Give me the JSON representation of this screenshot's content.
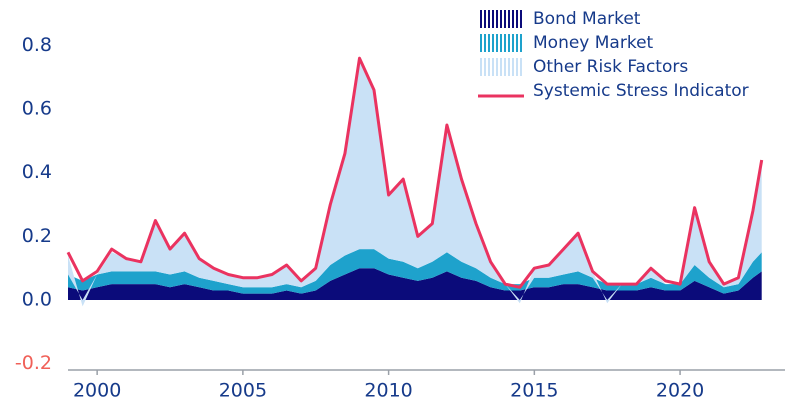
{
  "chart_data": {
    "type": "stacked_area_line",
    "x": [
      1999.0,
      1999.5,
      2000.0,
      2000.5,
      2001.0,
      2001.5,
      2002.0,
      2002.5,
      2003.0,
      2003.5,
      2004.0,
      2004.5,
      2005.0,
      2005.5,
      2006.0,
      2006.5,
      2007.0,
      2007.5,
      2008.0,
      2008.5,
      2009.0,
      2009.5,
      2010.0,
      2010.5,
      2011.0,
      2011.5,
      2012.0,
      2012.5,
      2013.0,
      2013.5,
      2014.0,
      2014.5,
      2015.0,
      2015.5,
      2016.0,
      2016.5,
      2017.0,
      2017.5,
      2018.0,
      2018.5,
      2019.0,
      2019.5,
      2020.0,
      2020.5,
      2021.0,
      2021.5,
      2022.0,
      2022.5,
      2022.8
    ],
    "series": [
      {
        "name": "Bond Market",
        "color": "#0b0b7a",
        "kind": "area",
        "values": [
          0.04,
          0.03,
          0.04,
          0.05,
          0.05,
          0.05,
          0.05,
          0.04,
          0.05,
          0.04,
          0.03,
          0.03,
          0.02,
          0.02,
          0.02,
          0.03,
          0.02,
          0.03,
          0.06,
          0.08,
          0.1,
          0.1,
          0.08,
          0.07,
          0.06,
          0.07,
          0.09,
          0.07,
          0.06,
          0.04,
          0.03,
          0.03,
          0.04,
          0.04,
          0.05,
          0.05,
          0.04,
          0.03,
          0.03,
          0.03,
          0.04,
          0.03,
          0.03,
          0.06,
          0.04,
          0.02,
          0.03,
          0.07,
          0.09
        ]
      },
      {
        "name": "Money Market",
        "color": "#1ea2cc",
        "kind": "area",
        "values": [
          0.04,
          0.03,
          0.04,
          0.04,
          0.04,
          0.04,
          0.04,
          0.04,
          0.04,
          0.03,
          0.03,
          0.02,
          0.02,
          0.02,
          0.02,
          0.02,
          0.02,
          0.03,
          0.05,
          0.06,
          0.06,
          0.06,
          0.05,
          0.05,
          0.04,
          0.05,
          0.06,
          0.05,
          0.04,
          0.03,
          0.02,
          0.02,
          0.03,
          0.03,
          0.03,
          0.04,
          0.03,
          0.02,
          0.02,
          0.02,
          0.03,
          0.02,
          0.02,
          0.05,
          0.03,
          0.02,
          0.02,
          0.05,
          0.06
        ]
      },
      {
        "name": "Other Risk Factors",
        "color": "#c9e1f6",
        "kind": "area",
        "values": [
          0.06,
          -0.02,
          0.0,
          0.06,
          0.04,
          0.03,
          0.15,
          0.08,
          0.12,
          0.06,
          0.04,
          0.03,
          0.03,
          0.03,
          0.04,
          0.06,
          0.02,
          0.04,
          0.2,
          0.32,
          0.6,
          0.5,
          0.2,
          0.26,
          0.1,
          0.12,
          0.4,
          0.26,
          0.14,
          0.05,
          0.0,
          -0.01,
          0.03,
          0.04,
          0.08,
          0.12,
          0.02,
          -0.01,
          0.0,
          0.0,
          0.03,
          0.0,
          0.0,
          0.18,
          0.05,
          0.01,
          0.02,
          0.16,
          0.29
        ]
      },
      {
        "name": "Systemic Stress Indicator",
        "color": "#ea3360",
        "kind": "line",
        "values": [
          0.15,
          0.06,
          0.09,
          0.16,
          0.13,
          0.12,
          0.25,
          0.16,
          0.21,
          0.13,
          0.1,
          0.08,
          0.07,
          0.07,
          0.08,
          0.11,
          0.06,
          0.1,
          0.3,
          0.46,
          0.76,
          0.66,
          0.33,
          0.38,
          0.2,
          0.24,
          0.55,
          0.38,
          0.24,
          0.12,
          0.05,
          0.04,
          0.1,
          0.11,
          0.16,
          0.21,
          0.09,
          0.05,
          0.05,
          0.05,
          0.1,
          0.06,
          0.05,
          0.29,
          0.12,
          0.05,
          0.07,
          0.28,
          0.44
        ]
      }
    ],
    "xlim": [
      1999,
      2023.6
    ],
    "ylim": [
      -0.22,
      0.88
    ],
    "xticks": [
      2000,
      2005,
      2010,
      2015,
      2020
    ],
    "yticks": [
      -0.2,
      {
        "value": 0,
        "label": "0.0"
      },
      0.2,
      0.4,
      0.6,
      0.8
    ],
    "legend": "top-right",
    "grid": false
  }
}
